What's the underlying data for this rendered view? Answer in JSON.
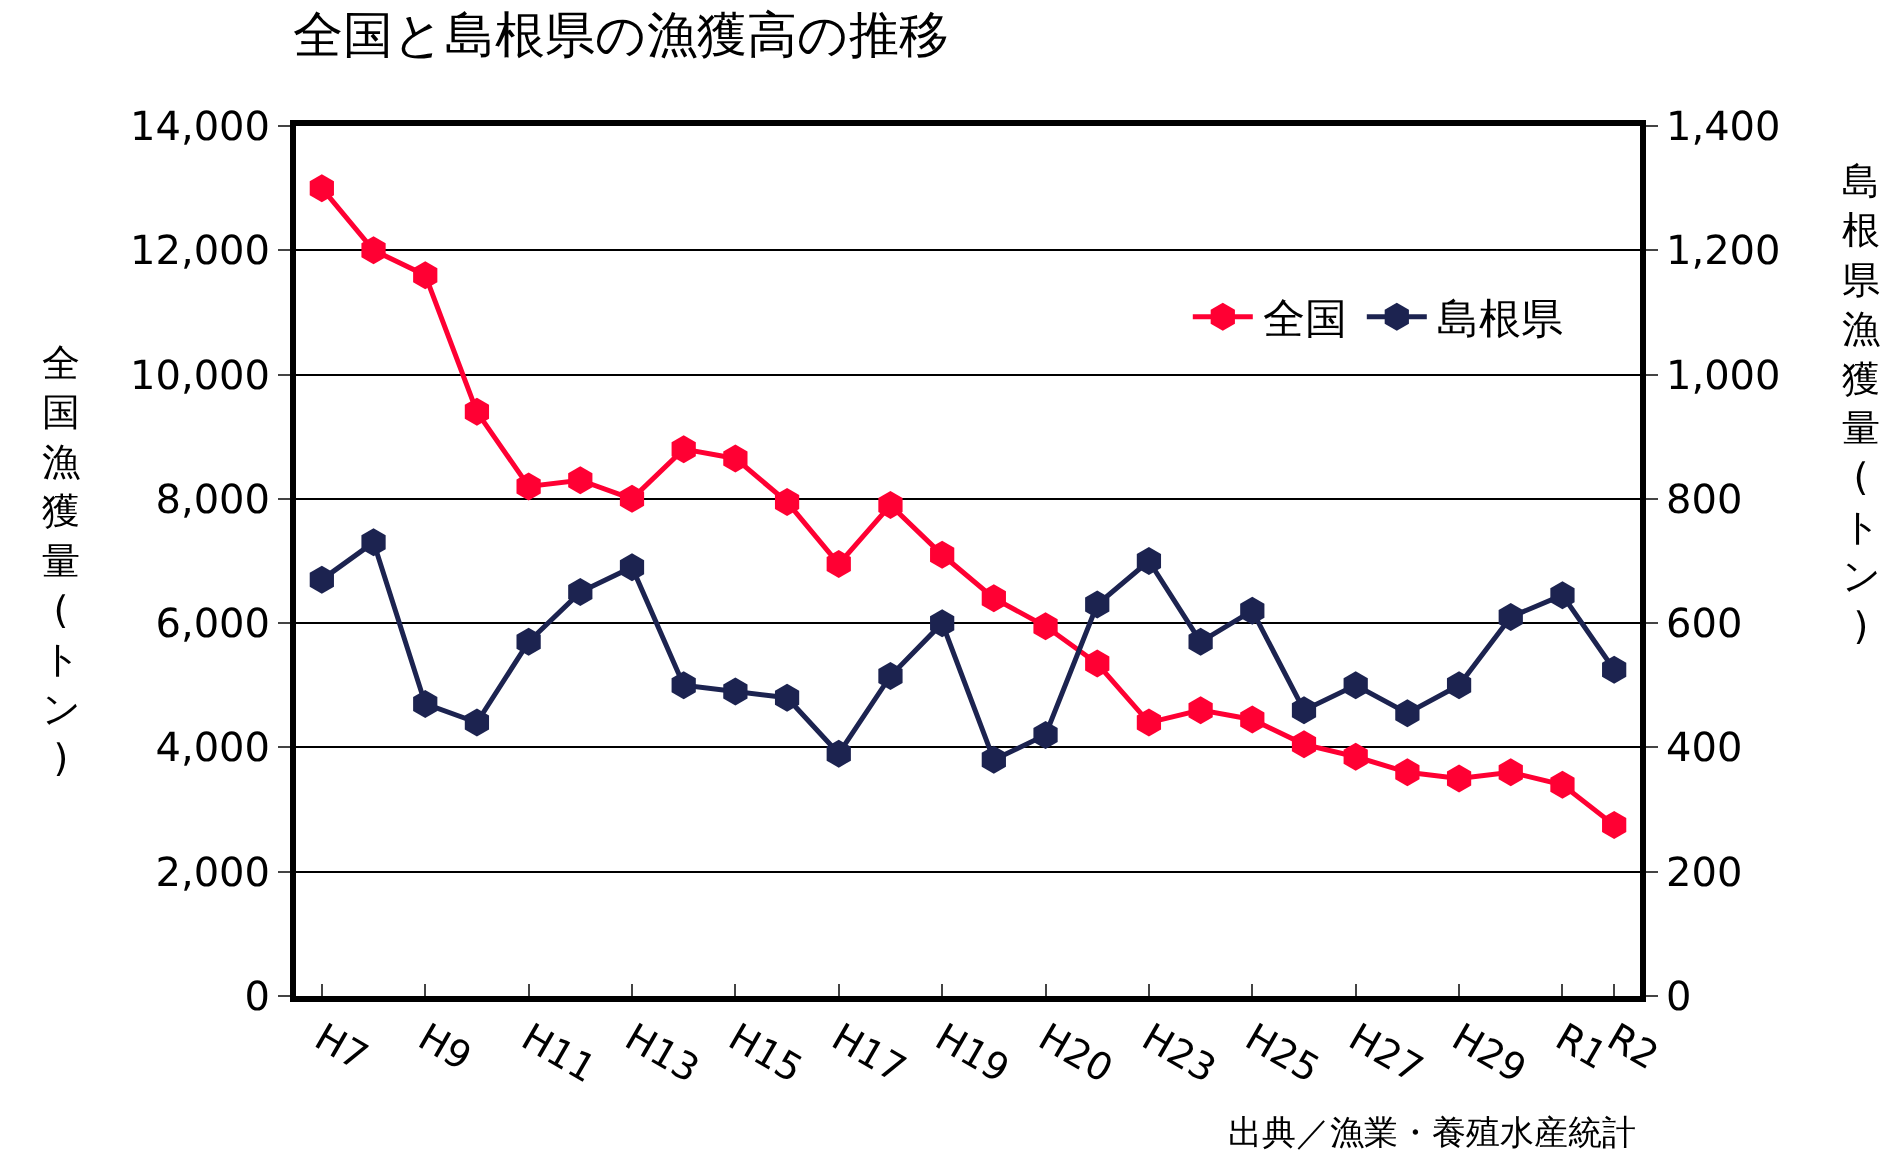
{
  "chart_data": {
    "type": "line",
    "title": "全国と島根県の漁獲高の推移",
    "ylabel": "全国漁獲量(トン)",
    "y2label": "島根県漁獲量(トン)",
    "categories": [
      "H7",
      null,
      "H9",
      null,
      "H11",
      null,
      "H13",
      null,
      "H15",
      null,
      "H17",
      null,
      "H19",
      null,
      "H20",
      null,
      "H23",
      null,
      "H25",
      null,
      "H27",
      null,
      "H29",
      null,
      "R1",
      "R2"
    ],
    "series": [
      {
        "name": "全国",
        "color": "#ff0033",
        "values": [
          13000,
          12000,
          11600,
          9400,
          8200,
          8300,
          8000,
          8800,
          8650,
          7950,
          6950,
          7900,
          7100,
          6400,
          5950,
          5350,
          4400,
          4600,
          4450,
          4050,
          3850,
          3600,
          3500,
          3600,
          3400,
          2750
        ]
      },
      {
        "name": "島根県",
        "color": "#1c2350",
        "axis": "y2",
        "values": [
          670,
          730,
          470,
          440,
          570,
          650,
          690,
          500,
          490,
          480,
          390,
          515,
          600,
          380,
          420,
          630,
          700,
          570,
          620,
          460,
          500,
          455,
          500,
          610,
          645,
          525
        ]
      }
    ],
    "ylim": [
      0,
      14000
    ],
    "yticks": [
      0,
      {
        "value": 2000,
        "label": "2,000"
      },
      {
        "value": 4000,
        "label": "4,000"
      },
      {
        "value": 6000,
        "label": "6,000"
      },
      {
        "value": 8000,
        "label": "8,000"
      },
      {
        "value": 10000,
        "label": "10,000"
      },
      {
        "value": 12000,
        "label": "12,000"
      },
      {
        "value": 14000,
        "label": "14,000"
      }
    ],
    "y2lim": [
      0,
      1400
    ],
    "y2ticks": [
      0,
      200,
      400,
      600,
      800,
      {
        "value": 1000,
        "label": "1,000"
      },
      {
        "value": 1200,
        "label": "1,200"
      },
      {
        "value": 1400,
        "label": "1,400"
      }
    ],
    "grid": "y",
    "legend": "top right",
    "marker": "circle",
    "line_style": "solid",
    "annotations": [
      "出典／漁業・養殖水産統計"
    ]
  }
}
